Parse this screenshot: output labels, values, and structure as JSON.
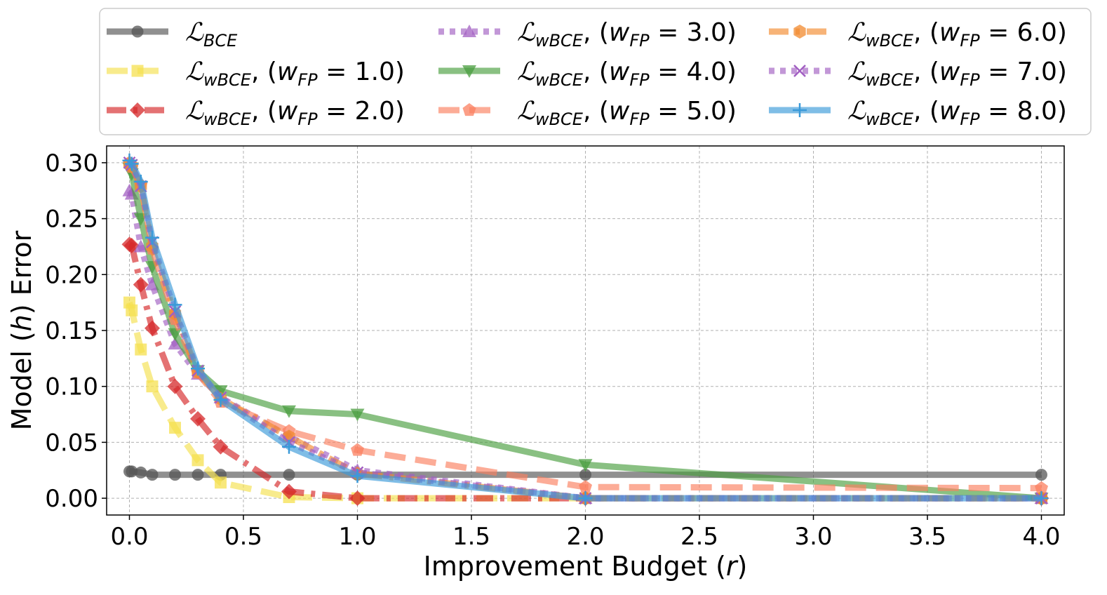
{
  "chart_data": {
    "type": "line",
    "title": "",
    "xlabel": "Improvement Budget (r)",
    "xlabel_parts": {
      "pre": "Improvement Budget (",
      "var": "r",
      "post": ")"
    },
    "ylabel": "Model (h) Error",
    "ylabel_parts": {
      "pre": "Model (",
      "var": "h",
      "post": ") Error"
    },
    "xlim": [
      -0.1,
      4.1
    ],
    "ylim": [
      -0.015,
      0.315
    ],
    "xticks": [
      0.0,
      0.5,
      1.0,
      1.5,
      2.0,
      2.5,
      3.0,
      3.5,
      4.0
    ],
    "xtick_labels": [
      "0.0",
      "0.5",
      "1.0",
      "1.5",
      "2.0",
      "2.5",
      "3.0",
      "3.5",
      "4.0"
    ],
    "yticks": [
      0.0,
      0.05,
      0.1,
      0.15,
      0.2,
      0.25,
      0.3
    ],
    "ytick_labels": [
      "0.00",
      "0.05",
      "0.10",
      "0.15",
      "0.20",
      "0.25",
      "0.30"
    ],
    "grid": true,
    "legend_position": "top",
    "x": [
      0.0,
      0.01,
      0.05,
      0.1,
      0.2,
      0.3,
      0.4,
      0.7,
      1.0,
      2.0,
      4.0
    ],
    "series": [
      {
        "name": "L_BCE",
        "label_main": "ℒ",
        "label_sub": "BCE",
        "label_rest": "",
        "color": "#555555",
        "dash": "solid",
        "marker": "circle",
        "values": [
          0.024,
          0.024,
          0.023,
          0.021,
          0.021,
          0.021,
          0.021,
          0.021,
          0.021,
          0.021,
          0.021
        ]
      },
      {
        "name": "L_wBCE, (w_FP = 1.0)",
        "label_main": "ℒ",
        "label_sub": "wBCE",
        "label_rest": ", (w",
        "label_sub2": "FP",
        "label_end": " = 1.0)",
        "color": "#f5e04f",
        "dash": "dashed",
        "marker": "square",
        "values": [
          0.175,
          0.168,
          0.133,
          0.1,
          0.063,
          0.034,
          0.014,
          0.001,
          0.0,
          0.0,
          0.0
        ]
      },
      {
        "name": "L_wBCE, (w_FP = 2.0)",
        "label_main": "ℒ",
        "label_sub": "wBCE",
        "label_rest": ", (w",
        "label_sub2": "FP",
        "label_end": " = 2.0)",
        "color": "#d62728",
        "dash": "dashdot",
        "marker": "diamond",
        "values": [
          0.227,
          0.226,
          0.191,
          0.152,
          0.1,
          0.071,
          0.046,
          0.006,
          0.0,
          0.0,
          0.0
        ]
      },
      {
        "name": "L_wBCE, (w_FP = 3.0)",
        "label_main": "ℒ",
        "label_sub": "wBCE",
        "label_rest": ", (w",
        "label_sub2": "FP",
        "label_end": " = 3.0)",
        "color": "#a25fc2",
        "dash": "dotted",
        "marker": "triangle-up",
        "values": [
          0.275,
          0.272,
          0.225,
          0.191,
          0.138,
          0.111,
          0.09,
          0.055,
          0.025,
          0.0,
          0.0
        ]
      },
      {
        "name": "L_wBCE, (w_FP = 4.0)",
        "label_main": "ℒ",
        "label_sub": "wBCE",
        "label_rest": ", (w",
        "label_sub2": "FP",
        "label_end": " = 4.0)",
        "color": "#4a9e3f",
        "dash": "solid",
        "marker": "triangle-down",
        "values": [
          0.295,
          0.29,
          0.25,
          0.207,
          0.147,
          0.114,
          0.096,
          0.078,
          0.075,
          0.03,
          0.0
        ]
      },
      {
        "name": "L_wBCE, (w_FP = 5.0)",
        "label_main": "ℒ",
        "label_sub": "wBCE",
        "label_rest": ", (w",
        "label_sub2": "FP",
        "label_end": " = 5.0)",
        "color": "#fb7f5f",
        "dash": "dashed",
        "marker": "pentagon",
        "values": [
          0.3,
          0.296,
          0.28,
          0.223,
          0.16,
          0.112,
          0.086,
          0.06,
          0.043,
          0.01,
          0.009
        ]
      },
      {
        "name": "L_wBCE, (w_FP = 6.0)",
        "label_main": "ℒ",
        "label_sub": "wBCE",
        "label_rest": ", (w",
        "label_sub2": "FP",
        "label_end": " = 6.0)",
        "color": "#f28a2e",
        "dash": "dashdot",
        "marker": "hexagon",
        "values": [
          0.299,
          0.297,
          0.279,
          0.225,
          0.165,
          0.113,
          0.089,
          0.055,
          0.022,
          0.0,
          0.0
        ]
      },
      {
        "name": "L_wBCE, (w_FP = 7.0)",
        "label_main": "ℒ",
        "label_sub": "wBCE",
        "label_rest": ", (w",
        "label_sub2": "FP",
        "label_end": " = 7.0)",
        "color": "#a25fc2",
        "dash": "dotted",
        "marker": "x",
        "values": [
          0.3,
          0.298,
          0.279,
          0.229,
          0.167,
          0.114,
          0.09,
          0.05,
          0.023,
          0.0,
          0.0
        ]
      },
      {
        "name": "L_wBCE, (w_FP = 8.0)",
        "label_main": "ℒ",
        "label_sub": "wBCE",
        "label_rest": ", (w",
        "label_sub2": "FP",
        "label_end": " = 8.0)",
        "color": "#3a9ad9",
        "dash": "solid",
        "marker": "plus",
        "values": [
          0.302,
          0.299,
          0.283,
          0.233,
          0.173,
          0.116,
          0.088,
          0.046,
          0.02,
          0.0,
          0.0
        ]
      }
    ]
  }
}
